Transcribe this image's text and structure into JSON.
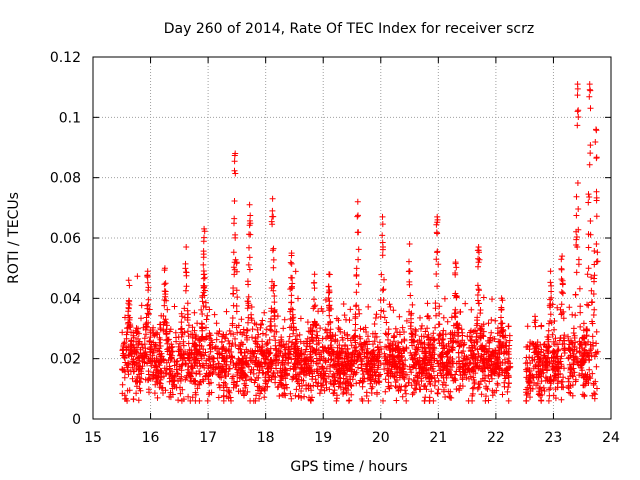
{
  "chart_data": {
    "type": "scatter",
    "title": "Day 260 of 2014, Rate Of TEC Index for receiver scrz",
    "xlabel": "GPS time / hours",
    "ylabel": "ROTI / TECUs",
    "xlim": [
      15,
      24
    ],
    "ylim": [
      0,
      0.12
    ],
    "xticks": [
      "15",
      "16",
      "17",
      "18",
      "19",
      "20",
      "21",
      "22",
      "23",
      "24"
    ],
    "yticks": [
      "0",
      "0.02",
      "0.04",
      "0.06",
      "0.08",
      "0.1",
      "0.12"
    ],
    "grid": true,
    "marker": "plus",
    "color": "#ff0000",
    "series": [
      {
        "name": "ROTI",
        "segments": [
          {
            "x_start": 15.5,
            "x_end": 22.25,
            "baseline": 0.018,
            "spread": 0.008,
            "floor": 0.006
          },
          {
            "x_start": 22.52,
            "x_end": 23.2,
            "baseline": 0.016,
            "spread": 0.007,
            "floor": 0.006
          },
          {
            "x_start": 23.25,
            "x_end": 23.78,
            "baseline": 0.018,
            "spread": 0.008,
            "floor": 0.006
          }
        ],
        "peaks": [
          {
            "x": 15.62,
            "y": 0.046
          },
          {
            "x": 15.95,
            "y": 0.049
          },
          {
            "x": 16.25,
            "y": 0.05
          },
          {
            "x": 16.62,
            "y": 0.057
          },
          {
            "x": 16.93,
            "y": 0.063
          },
          {
            "x": 17.47,
            "y": 0.088
          },
          {
            "x": 17.72,
            "y": 0.071
          },
          {
            "x": 18.12,
            "y": 0.073
          },
          {
            "x": 18.45,
            "y": 0.055
          },
          {
            "x": 18.85,
            "y": 0.048
          },
          {
            "x": 19.1,
            "y": 0.048
          },
          {
            "x": 19.6,
            "y": 0.072
          },
          {
            "x": 20.03,
            "y": 0.067
          },
          {
            "x": 20.5,
            "y": 0.058
          },
          {
            "x": 20.98,
            "y": 0.067
          },
          {
            "x": 21.3,
            "y": 0.052
          },
          {
            "x": 21.7,
            "y": 0.057
          },
          {
            "x": 22.1,
            "y": 0.04
          },
          {
            "x": 22.68,
            "y": 0.034
          },
          {
            "x": 22.95,
            "y": 0.049
          },
          {
            "x": 23.15,
            "y": 0.054
          },
          {
            "x": 23.42,
            "y": 0.111
          },
          {
            "x": 23.63,
            "y": 0.111
          },
          {
            "x": 23.74,
            "y": 0.096
          }
        ]
      }
    ]
  }
}
